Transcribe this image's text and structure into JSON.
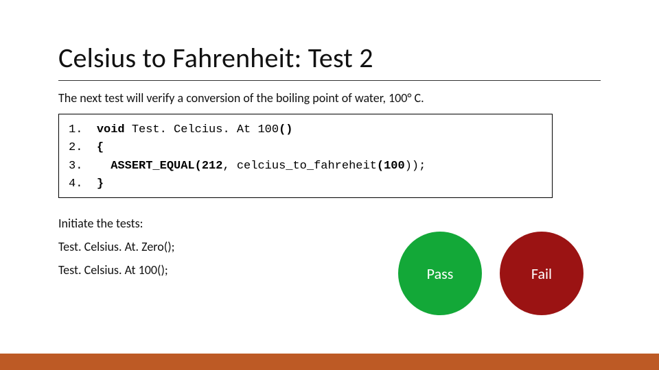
{
  "title": "Celsius to Fahrenheit: Test 2",
  "subtitle": "The next test will verify a conversion of the boiling point of water, 100° C.",
  "code": {
    "lines": [
      {
        "num": "1.",
        "pre": "  ",
        "segments": [
          {
            "t": "void",
            "bold": true
          },
          {
            "t": " Test. Celcius. At 100",
            "bold": false
          },
          {
            "t": "()",
            "bold": true
          }
        ]
      },
      {
        "num": "2.",
        "pre": "  ",
        "segments": [
          {
            "t": "{",
            "bold": true
          }
        ]
      },
      {
        "num": "3.",
        "pre": "    ",
        "segments": [
          {
            "t": "ASSERT_EQUAL(212",
            "bold": true
          },
          {
            "t": ", celcius_to_fahreheit",
            "bold": false
          },
          {
            "t": "(100",
            "bold": true
          },
          {
            "t": "));",
            "bold": false
          }
        ]
      },
      {
        "num": "4.",
        "pre": "  ",
        "segments": [
          {
            "t": "}",
            "bold": true
          }
        ]
      }
    ]
  },
  "initiate": "Initiate the tests:",
  "calls": [
    "Test. Celsius. At. Zero();",
    "Test. Celsius. At 100();"
  ],
  "circles": {
    "pass": {
      "label": "Pass",
      "color": "#13a838"
    },
    "fail": {
      "label": "Fail",
      "color": "#9b1313"
    }
  },
  "footer_color": "#bd5a25",
  "title_fontsize": 40,
  "body_fontsize": 18,
  "code_fontsize": 17
}
